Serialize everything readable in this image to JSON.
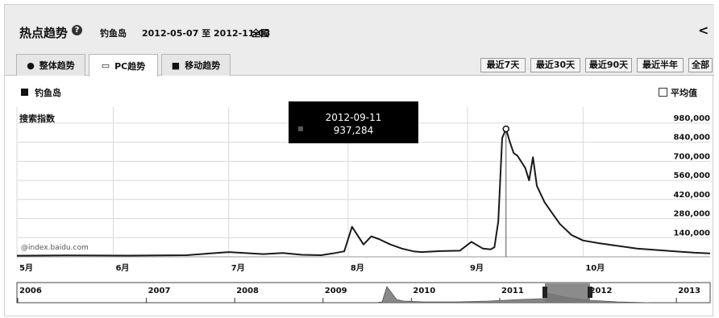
{
  "header": {
    "title": "热点趋势",
    "help_icon": "?",
    "keyword": "钓鱼岛",
    "date_range": "2012-05-07 至 2012-11-03",
    "region": "全国",
    "share_icon": "<"
  },
  "tabs": [
    {
      "label": "整体趋势",
      "icon": "●"
    },
    {
      "label": "PC趋势",
      "icon": "▭"
    },
    {
      "label": "移动趋势",
      "icon": "■"
    }
  ],
  "range_buttons": [
    "最近7天",
    "最近30天",
    "最近90天",
    "最近半年",
    "全部"
  ],
  "legend": {
    "series": "钓鱼岛",
    "average_label": "平均值"
  },
  "y_axis_title": "搜索指数",
  "watermark": "@index.baidu.com",
  "tooltip": {
    "date": "2012-09-11",
    "value": "937,284"
  },
  "colors": {
    "line": "#1a1a1a",
    "grid": "#d9d9d9",
    "nav_fill": "#888888",
    "selection": "#777777"
  },
  "chart_data": {
    "type": "line",
    "y_ticks": [
      "980,000",
      "840,000",
      "700,000",
      "560,000",
      "420,000",
      "280,000",
      "140,000"
    ],
    "ylim": [
      0,
      1050000
    ],
    "x_ticks": [
      "5月",
      "6月",
      "7月",
      "8月",
      "9月",
      "10月"
    ],
    "series": [
      {
        "name": "钓鱼岛",
        "x": [
          "2012-05-07",
          "2012-05-20",
          "2012-06-05",
          "2012-06-20",
          "2012-07-01",
          "2012-07-10",
          "2012-07-15",
          "2012-07-20",
          "2012-07-25",
          "2012-07-28",
          "2012-07-31",
          "2012-08-02",
          "2012-08-05",
          "2012-08-07",
          "2012-08-09",
          "2012-08-12",
          "2012-08-15",
          "2012-08-18",
          "2012-08-20",
          "2012-08-25",
          "2012-08-30",
          "2012-09-02",
          "2012-09-05",
          "2012-09-07",
          "2012-09-08",
          "2012-09-09",
          "2012-09-10",
          "2012-09-11",
          "2012-09-12",
          "2012-09-13",
          "2012-09-14",
          "2012-09-16",
          "2012-09-17",
          "2012-09-18",
          "2012-09-19",
          "2012-09-21",
          "2012-09-23",
          "2012-09-25",
          "2012-09-28",
          "2012-10-01",
          "2012-10-05",
          "2012-10-10",
          "2012-10-15",
          "2012-10-20",
          "2012-10-25",
          "2012-10-30",
          "2012-11-03"
        ],
        "values": [
          8000,
          10000,
          9000,
          12000,
          35000,
          20000,
          28000,
          15000,
          12000,
          25000,
          40000,
          220000,
          90000,
          150000,
          130000,
          90000,
          60000,
          40000,
          35000,
          42000,
          45000,
          110000,
          60000,
          55000,
          70000,
          260000,
          870000,
          937284,
          840000,
          760000,
          740000,
          650000,
          560000,
          730000,
          520000,
          400000,
          320000,
          240000,
          160000,
          120000,
          100000,
          80000,
          60000,
          50000,
          40000,
          30000,
          25000
        ]
      }
    ],
    "navigator": {
      "years": [
        "2006",
        "2007",
        "2008",
        "2009",
        "2010",
        "2011",
        "2012",
        "2013"
      ],
      "selection": [
        "2012-05-07",
        "2012-11-03"
      ]
    }
  }
}
